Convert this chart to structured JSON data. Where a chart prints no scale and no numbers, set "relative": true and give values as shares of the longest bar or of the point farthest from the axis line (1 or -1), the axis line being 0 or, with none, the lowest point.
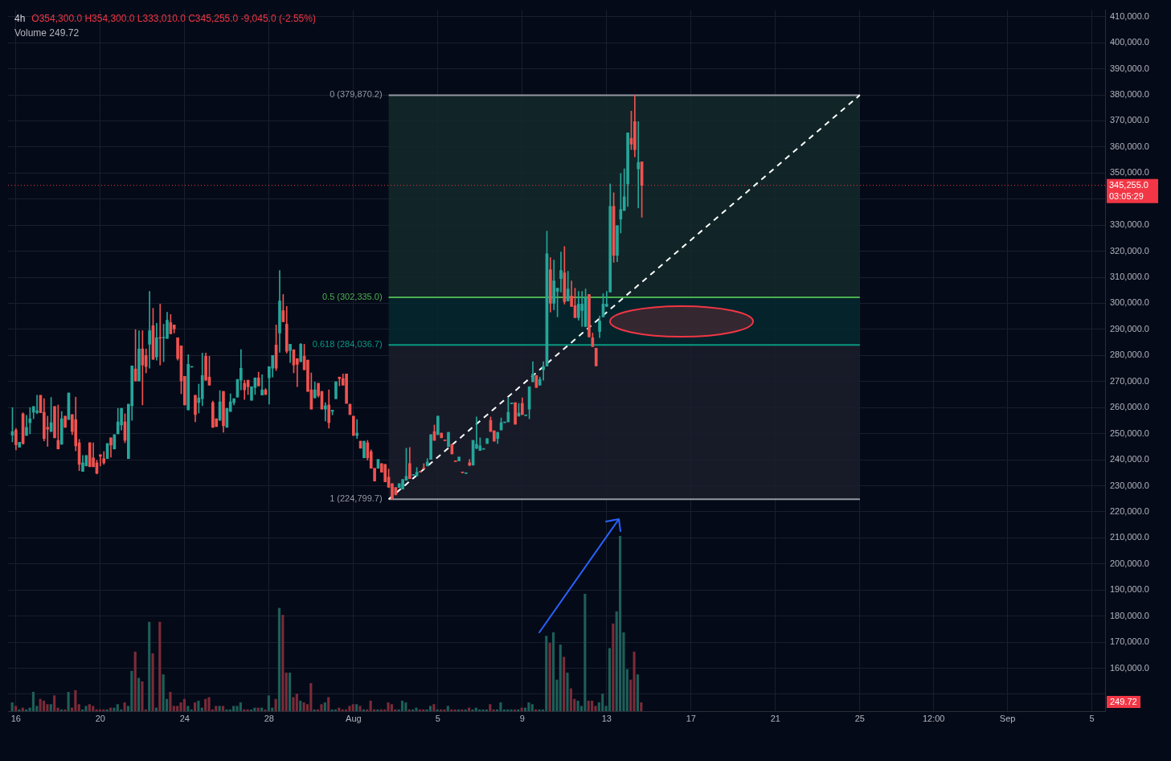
{
  "chart_data": [
    {
      "type": "candlestick",
      "title": "4h",
      "subtitle": "O354,300.0 H354,300.0 L333,010.0 C345,255.0 -9,045.0 (-2.55%)",
      "x": [
        "--07-15T20:00",
        "--07-16T00:00",
        "--07-16T04:00",
        "--07-16T08:00",
        "--07-16T12:00",
        "--07-16T16:00",
        "--07-16T20:00",
        "--07-17T00:00",
        "--07-17T04:00",
        "--07-17T08:00",
        "--07-17T12:00",
        "--07-17T16:00",
        "--07-17T20:00",
        "--07-18T00:00",
        "--07-18T04:00",
        "--07-18T08:00",
        "--07-18T12:00",
        "--07-18T16:00",
        "--07-18T20:00",
        "--07-19T00:00",
        "--07-19T04:00",
        "--07-19T08:00",
        "--07-19T12:00",
        "--07-19T16:00",
        "--07-19T20:00",
        "--07-20T00:00",
        "--07-20T04:00",
        "--07-20T08:00",
        "--07-20T12:00",
        "--07-20T16:00",
        "--07-20T20:00",
        "--07-21T00:00",
        "--07-21T04:00",
        "--07-21T08:00",
        "--07-21T12:00",
        "--07-21T16:00",
        "--07-21T20:00",
        "--07-22T00:00",
        "--07-22T04:00",
        "--07-22T08:00",
        "--07-22T12:00",
        "--07-22T16:00",
        "--07-22T20:00",
        "--07-23T00:00",
        "--07-23T04:00",
        "--07-23T08:00",
        "--07-23T12:00",
        "--07-23T16:00",
        "--07-23T20:00",
        "--07-24T00:00",
        "--07-24T04:00",
        "--07-24T08:00",
        "--07-24T12:00",
        "--07-24T16:00",
        "--07-24T20:00",
        "--07-25T00:00",
        "--07-25T04:00",
        "--07-25T08:00",
        "--07-25T12:00",
        "--07-25T16:00",
        "--07-25T20:00",
        "--07-26T00:00",
        "--07-26T04:00",
        "--07-26T08:00",
        "--07-26T12:00",
        "--07-26T16:00",
        "--07-26T20:00",
        "--07-27T00:00",
        "--07-27T04:00",
        "--07-27T08:00",
        "--07-27T12:00",
        "--07-27T16:00",
        "--07-27T20:00",
        "--07-28T00:00",
        "--07-28T04:00",
        "--07-28T08:00",
        "--07-28T12:00",
        "--07-28T16:00",
        "--07-28T20:00",
        "--07-29T00:00",
        "--07-29T04:00",
        "--07-29T08:00",
        "--07-29T12:00",
        "--07-29T16:00",
        "--07-29T20:00",
        "--07-30T00:00",
        "--07-30T04:00",
        "--07-30T08:00",
        "--07-30T12:00",
        "--07-30T16:00",
        "--07-30T20:00",
        "--07-31T00:00",
        "--07-31T04:00",
        "--07-31T08:00",
        "--07-31T12:00",
        "--07-31T16:00",
        "--07-31T20:00",
        "--08-01T00:00",
        "--08-01T04:00",
        "--08-01T08:00",
        "--08-01T12:00",
        "--08-01T16:00",
        "--08-01T20:00",
        "--08-02T00:00",
        "--08-02T04:00",
        "--08-02T08:00",
        "--08-02T12:00",
        "--08-02T16:00",
        "--08-02T20:00",
        "--08-03T00:00",
        "--08-03T04:00",
        "--08-03T08:00",
        "--08-03T12:00",
        "--08-03T16:00",
        "--08-03T20:00",
        "--08-04T00:00",
        "--08-04T04:00",
        "--08-04T08:00",
        "--08-04T12:00",
        "--08-04T16:00",
        "--08-04T20:00",
        "--08-05T00:00",
        "--08-05T04:00",
        "--08-05T08:00",
        "--08-05T12:00",
        "--08-05T16:00",
        "--08-05T20:00",
        "--08-06T00:00",
        "--08-06T04:00",
        "--08-06T08:00",
        "--08-06T12:00",
        "--08-06T16:00",
        "--08-06T20:00",
        "--08-07T00:00",
        "--08-07T04:00",
        "--08-07T08:00",
        "--08-07T12:00",
        "--08-07T16:00",
        "--08-07T20:00",
        "--08-08T00:00",
        "--08-08T04:00",
        "--08-08T08:00",
        "--08-08T12:00",
        "--08-08T16:00",
        "--08-08T20:00",
        "--08-09T00:00",
        "--08-09T04:00",
        "--08-09T08:00",
        "--08-09T12:00",
        "--08-09T16:00",
        "--08-09T20:00",
        "--08-10T00:00",
        "--08-10T04:00",
        "--08-10T08:00",
        "--08-10T12:00",
        "--08-10T16:00",
        "--08-10T20:00",
        "--08-11T00:00",
        "--08-11T04:00",
        "--08-11T08:00",
        "--08-11T12:00",
        "--08-11T16:00",
        "--08-11T20:00",
        "--08-12T00:00",
        "--08-12T04:00",
        "--08-12T08:00",
        "--08-12T12:00",
        "--08-12T16:00",
        "--08-12T20:00",
        "--08-13T00:00",
        "--08-13T04:00",
        "--08-13T08:00",
        "--08-13T12:00",
        "--08-13T16:00",
        "--08-13T20:00",
        "--08-14T00:00",
        "--08-14T04:00",
        "--08-14T08:00",
        "--08-14T12:00",
        "--08-14T16:00"
      ],
      "ohlc": [
        [
          249400,
          260000,
          246800,
          250800
        ],
        [
          251400,
          252000,
          243700,
          245700
        ],
        [
          244800,
          246700,
          244800,
          246700
        ],
        [
          257600,
          258000,
          245900,
          246200
        ],
        [
          249300,
          257000,
          249300,
          252400
        ],
        [
          254200,
          260000,
          249900,
          255700
        ],
        [
          258200,
          260400,
          255700,
          260400
        ],
        [
          258100,
          264700,
          257600,
          258800
        ],
        [
          264700,
          264700,
          258000,
          258000
        ],
        [
          258200,
          263400,
          247200,
          248100
        ],
        [
          252400,
          256700,
          245100,
          251700
        ],
        [
          250800,
          263900,
          250800,
          254200
        ],
        [
          260400,
          260400,
          248400,
          248400
        ],
        [
          247400,
          261000,
          244100,
          244100
        ],
        [
          245900,
          258500,
          245900,
          255700
        ],
        [
          256700,
          256700,
          252400,
          252400
        ],
        [
          255400,
          265600,
          255400,
          265600
        ],
        [
          257300,
          257300,
          249600,
          250800
        ],
        [
          255400,
          264000,
          243400,
          245300
        ],
        [
          246500,
          247800,
          235800,
          238200
        ],
        [
          235500,
          241600,
          235500,
          238800
        ],
        [
          237600,
          241600,
          237600,
          241600
        ],
        [
          246500,
          246500,
          237300,
          237300
        ],
        [
          240700,
          246500,
          237300,
          237300
        ],
        [
          238800,
          239800,
          234500,
          234800
        ],
        [
          241900,
          241900,
          237600,
          241300
        ],
        [
          240400,
          243100,
          238200,
          238800
        ],
        [
          240400,
          246200,
          240400,
          246200
        ],
        [
          248400,
          248400,
          241000,
          245600
        ],
        [
          244100,
          249600,
          244100,
          249600
        ],
        [
          249900,
          259700,
          249900,
          254500
        ],
        [
          253300,
          259700,
          251400,
          259700
        ],
        [
          254500,
          257600,
          246500,
          247400
        ],
        [
          240400,
          261300,
          240400,
          261300
        ],
        [
          260700,
          276000,
          255100,
          276000
        ],
        [
          274800,
          289900,
          270200,
          270200
        ],
        [
          270200,
          289500,
          270200,
          282500
        ],
        [
          282500,
          289500,
          261000,
          276300
        ],
        [
          280000,
          282500,
          273300,
          275700
        ],
        [
          284300,
          304600,
          275100,
          289500
        ],
        [
          291400,
          298100,
          278500,
          278500
        ],
        [
          279400,
          292300,
          278200,
          286800
        ],
        [
          286800,
          299700,
          276300,
          286600
        ],
        [
          286700,
          292000,
          277600,
          286800
        ],
        [
          286500,
          296600,
          286500,
          293500
        ],
        [
          292600,
          295700,
          288300,
          288300
        ],
        [
          291700,
          291700,
          288600,
          290200
        ],
        [
          286800,
          286800,
          278200,
          278800
        ],
        [
          283700,
          283700,
          265300,
          270200
        ],
        [
          272000,
          272000,
          261000,
          261000
        ],
        [
          259100,
          280300,
          259100,
          276600
        ],
        [
          275500,
          275600,
          275500,
          275600
        ],
        [
          264700,
          264700,
          254500,
          257300
        ],
        [
          261900,
          269000,
          257900,
          263700
        ],
        [
          263400,
          280900,
          260700,
          272300
        ],
        [
          279700,
          280900,
          270500,
          270500
        ],
        [
          271700,
          279700,
          268600,
          268600
        ],
        [
          261900,
          262500,
          252400,
          252400
        ],
        [
          255700,
          255700,
          252700,
          252700
        ],
        [
          255100,
          266500,
          255100,
          262200
        ],
        [
          266200,
          266200,
          250500,
          253000
        ],
        [
          252400,
          259700,
          252400,
          259700
        ],
        [
          258500,
          265300,
          258500,
          262200
        ],
        [
          261900,
          263400,
          261000,
          263400
        ],
        [
          264000,
          270800,
          264000,
          270800
        ],
        [
          270500,
          282200,
          266800,
          275100
        ],
        [
          269300,
          270500,
          263100,
          266800
        ],
        [
          270500,
          270500,
          265000,
          268000
        ],
        [
          262800,
          268000,
          262800,
          268000
        ],
        [
          267700,
          271400,
          265000,
          271400
        ],
        [
          271400,
          273600,
          268300,
          268300
        ],
        [
          264800,
          272600,
          264800,
          266800
        ],
        [
          266800,
          267300,
          265000,
          265000
        ],
        [
          271400,
          275700,
          261300,
          275700
        ],
        [
          275100,
          280000,
          271700,
          280000
        ],
        [
          284000,
          291700,
          274200,
          275100
        ],
        [
          288600,
          312600,
          281200,
          300900
        ],
        [
          297200,
          303400,
          292900,
          292900
        ],
        [
          292000,
          298800,
          280900,
          281600
        ],
        [
          281900,
          284300,
          277300,
          284300
        ],
        [
          282200,
          282200,
          273300,
          276300
        ],
        [
          278800,
          278800,
          268000,
          276600
        ],
        [
          277600,
          284600,
          277600,
          284300
        ],
        [
          279700,
          284300,
          274500,
          274500
        ],
        [
          278200,
          278200,
          266200,
          266200
        ],
        [
          266800,
          273300,
          259400,
          259400
        ],
        [
          263700,
          269800,
          263700,
          266800
        ],
        [
          269300,
          269300,
          264000,
          264600
        ],
        [
          266200,
          266200,
          259400,
          259400
        ],
        [
          259400,
          261900,
          254800,
          260700
        ],
        [
          261000,
          266800,
          252100,
          254200
        ],
        [
          258500,
          259000,
          257200,
          259000
        ],
        [
          263400,
          269900,
          263400,
          269900
        ],
        [
          271700,
          271700,
          268300,
          271100
        ],
        [
          271100,
          272900,
          268600,
          268600
        ],
        [
          272900,
          272900,
          261600,
          261600
        ],
        [
          261300,
          261300,
          257300,
          257300
        ],
        [
          256700,
          256700,
          249300,
          249300
        ],
        [
          249300,
          255400,
          248100,
          250200
        ],
        [
          247100,
          247100,
          244400,
          244400
        ],
        [
          240700,
          247100,
          240700,
          247100
        ],
        [
          246500,
          247400,
          239800,
          240700
        ],
        [
          243100,
          243800,
          236700,
          236700
        ],
        [
          236700,
          236700,
          231800,
          231800
        ],
        [
          236700,
          240100,
          236700,
          240100
        ],
        [
          238500,
          238500,
          235200,
          235200
        ],
        [
          238200,
          238200,
          231500,
          231500
        ],
        [
          233300,
          236400,
          229400,
          229400
        ],
        [
          230800,
          230800,
          224799.7,
          225000
        ],
        [
          229300,
          229300,
          226500,
          226500
        ],
        [
          229300,
          230800,
          229300,
          230800
        ],
        [
          228700,
          232400,
          228700,
          232400
        ],
        [
          232100,
          244400,
          232100,
          233600
        ],
        [
          238500,
          244700,
          232700,
          232700
        ],
        [
          234000,
          234100,
          234000,
          234100
        ],
        [
          233900,
          237000,
          233600,
          235200
        ],
        [
          235500,
          235500,
          235200,
          235200
        ],
        [
          236700,
          238500,
          236500,
          236500
        ],
        [
          237600,
          240400,
          237600,
          239100
        ],
        [
          240100,
          249600,
          240100,
          249600
        ],
        [
          250800,
          253300,
          247400,
          247400
        ],
        [
          249600,
          256700,
          249600,
          256700
        ],
        [
          250200,
          250200,
          248400,
          248400
        ],
        [
          247400,
          247400,
          247300,
          247300
        ],
        [
          245000,
          250500,
          245000,
          250500
        ],
        [
          245900,
          245900,
          242200,
          242200
        ],
        [
          239400,
          239400,
          239300,
          239300
        ],
        [
          239500,
          241000,
          239500,
          241000
        ],
        [
          235100,
          235100,
          235000,
          235000
        ],
        [
          234700,
          234800,
          234700,
          234800
        ],
        [
          238800,
          240100,
          237600,
          237900
        ],
        [
          237900,
          247400,
          237900,
          247400
        ],
        [
          244400,
          256400,
          244100,
          245900
        ],
        [
          243500,
          248400,
          243500,
          245300
        ],
        [
          244000,
          244100,
          244000,
          244100
        ],
        [
          246200,
          248100,
          246200,
          248100
        ],
        [
          255100,
          256400,
          250800,
          250800
        ],
        [
          251100,
          251100,
          247100,
          247100
        ],
        [
          248100,
          250500,
          246200,
          250500
        ],
        [
          251400,
          256000,
          251400,
          254200
        ],
        [
          254200,
          254300,
          254200,
          254300
        ],
        [
          254500,
          263700,
          254500,
          258200
        ],
        [
          261500,
          261600,
          261500,
          261600
        ],
        [
          261900,
          261900,
          253600,
          253600
        ],
        [
          256700,
          261600,
          256700,
          257900
        ],
        [
          261600,
          263700,
          257300,
          257300
        ],
        [
          256900,
          257000,
          256900,
          257000
        ],
        [
          259400,
          268000,
          255700,
          268000
        ],
        [
          269900,
          277600,
          269900,
          272900
        ],
        [
          272300,
          272300,
          267700,
          267700
        ],
        [
          268600,
          271700,
          268600,
          270800
        ],
        [
          274500,
          277600,
          270500,
          275700
        ],
        [
          275900,
          327700,
          275900,
          319000
        ],
        [
          312900,
          317500,
          296600,
          300000
        ],
        [
          300000,
          316600,
          297500,
          308600
        ],
        [
          304600,
          305800,
          294800,
          305800
        ],
        [
          309500,
          319700,
          304300,
          312600
        ],
        [
          311700,
          321800,
          299700,
          300600
        ],
        [
          300900,
          312300,
          300900,
          305500
        ],
        [
          302800,
          308600,
          298800,
          298800
        ],
        [
          299100,
          305800,
          294500,
          294500
        ],
        [
          294500,
          304600,
          293500,
          299700
        ],
        [
          297200,
          304600,
          291100,
          299700
        ],
        [
          291100,
          305500,
          291100,
          302100
        ],
        [
          303400,
          303400,
          287100,
          287100
        ],
        [
          286800,
          288600,
          283400,
          283400
        ],
        [
          282800,
          282800,
          276000,
          276000
        ],
        [
          289200,
          295100,
          286800,
          293200
        ],
        [
          294800,
          303700,
          294800,
          299700
        ],
        [
          298800,
          304600,
          298800,
          299700
        ],
        [
          304300,
          345800,
          304300,
          337200
        ],
        [
          337200,
          342400,
          315700,
          318400
        ],
        [
          318400,
          329800,
          316000,
          329800
        ],
        [
          332300,
          349800,
          327000,
          336000
        ],
        [
          335600,
          351600,
          335600,
          340900
        ],
        [
          345800,
          365400,
          337200,
          365400
        ],
        [
          363300,
          373700,
          359000,
          361100
        ],
        [
          369700,
          379870.2,
          356200,
          359000
        ],
        [
          351600,
          369700,
          336600,
          354100
        ],
        [
          354300,
          354300,
          333010,
          345255
        ]
      ],
      "colors": [
        "#26a69a",
        "#ef5350",
        "#26a69a",
        "#ef5350",
        "#26a69a",
        "#26a69a",
        "#26a69a",
        "#26a69a",
        "#ef5350",
        "#ef5350",
        "#ef5350",
        "#26a69a",
        "#ef5350",
        "#ef5350",
        "#26a69a",
        "#ef5350",
        "#26a69a",
        "#ef5350",
        "#ef5350",
        "#ef5350",
        "#26a69a",
        "#26a69a",
        "#ef5350",
        "#ef5350",
        "#ef5350",
        "#ef5350",
        "#ef5350",
        "#26a69a",
        "#ef5350",
        "#26a69a",
        "#26a69a",
        "#26a69a",
        "#ef5350",
        "#26a69a",
        "#26a69a",
        "#ef5350",
        "#26a69a",
        "#ef5350",
        "#ef5350",
        "#26a69a",
        "#ef5350",
        "#26a69a",
        "#ef5350",
        "#26a69a",
        "#26a69a",
        "#ef5350",
        "#ef5350",
        "#ef5350",
        "#ef5350",
        "#ef5350",
        "#26a69a",
        "#26a69a",
        "#ef5350",
        "#26a69a",
        "#26a69a",
        "#ef5350",
        "#ef5350",
        "#ef5350",
        "#ef5350",
        "#26a69a",
        "#ef5350",
        "#26a69a",
        "#26a69a",
        "#26a69a",
        "#26a69a",
        "#26a69a",
        "#ef5350",
        "#ef5350",
        "#26a69a",
        "#26a69a",
        "#ef5350",
        "#26a69a",
        "#ef5350",
        "#26a69a",
        "#26a69a",
        "#ef5350",
        "#26a69a",
        "#ef5350",
        "#ef5350",
        "#26a69a",
        "#ef5350",
        "#ef5350",
        "#26a69a",
        "#ef5350",
        "#ef5350",
        "#ef5350",
        "#26a69a",
        "#ef5350",
        "#ef5350",
        "#26a69a",
        "#ef5350",
        "#26a69a",
        "#26a69a",
        "#ef5350",
        "#ef5350",
        "#ef5350",
        "#ef5350",
        "#ef5350",
        "#26a69a",
        "#ef5350",
        "#26a69a",
        "#ef5350",
        "#ef5350",
        "#ef5350",
        "#26a69a",
        "#ef5350",
        "#ef5350",
        "#ef5350",
        "#ef5350",
        "#ef5350",
        "#26a69a",
        "#26a69a",
        "#26a69a",
        "#ef5350",
        "#26a69a",
        "#26a69a",
        "#ef5350",
        "#ef5350",
        "#26a69a",
        "#26a69a",
        "#ef5350",
        "#26a69a",
        "#ef5350",
        "#ef5350",
        "#26a69a",
        "#ef5350",
        "#ef5350",
        "#26a69a",
        "#ef5350",
        "#26a69a",
        "#ef5350",
        "#26a69a",
        "#26a69a",
        "#26a69a",
        "#26a69a",
        "#26a69a",
        "#ef5350",
        "#ef5350",
        "#26a69a",
        "#26a69a",
        "#26a69a",
        "#26a69a",
        "#26a69a",
        "#ef5350",
        "#26a69a",
        "#ef5350",
        "#26a69a",
        "#26a69a",
        "#26a69a",
        "#ef5350",
        "#26a69a",
        "#26a69a",
        "#26a69a",
        "#ef5350",
        "#26a69a",
        "#26a69a",
        "#26a69a",
        "#ef5350",
        "#26a69a",
        "#ef5350",
        "#ef5350",
        "#26a69a",
        "#26a69a",
        "#26a69a",
        "#ef5350",
        "#ef5350",
        "#ef5350",
        "#26a69a",
        "#26a69a",
        "#26a69a",
        "#26a69a",
        "#ef5350",
        "#26a69a",
        "#26a69a",
        "#26a69a",
        "#26a69a",
        "#ef5350",
        "#ef5350",
        "#26a69a",
        "#ef5350"
      ],
      "series": [
        {
          "type": "line",
          "x": [
            "--08-02T16:00",
            "--08-25"
          ],
          "values": [
            224800,
            379900
          ],
          "color": "#ffffff",
          "line_style": "dashed",
          "marker": "none"
        }
      ],
      "ref_lines": [
        {
          "axis": "y",
          "value": 379870.2,
          "label": "0 (379,870.2)",
          "color": "#9598a1"
        },
        {
          "axis": "y",
          "value": 302335.0,
          "label": "0.5 (302,335.0)",
          "color": "#4caf50"
        },
        {
          "axis": "y",
          "value": 284036.7,
          "label": "0.618 (284,036.7)",
          "color": "#089981"
        },
        {
          "axis": "y",
          "value": 224799.7,
          "label": "1 (224,799.7)",
          "color": "#9598a1"
        },
        {
          "axis": "y",
          "value": 345255.0,
          "label": "345,255.0 03:05:29",
          "color": "#f23645",
          "line_style": "dotted"
        }
      ],
      "bands": [
        {
          "axis": "y",
          "from": 302335.0,
          "to": 379870.2,
          "color": "#14292a"
        },
        {
          "axis": "y",
          "from": 284036.7,
          "to": 302335.0,
          "color": "#06282f"
        },
        {
          "axis": "y",
          "from": 224799.7,
          "to": 284036.7,
          "color": "#1b1f2b"
        }
      ],
      "xlim": [
        "--07-15T15:00",
        "--09-05T15:00"
      ],
      "xticks": [
        {
          "value": "--07-16",
          "label": "16"
        },
        {
          "value": "--07-20",
          "label": "20"
        },
        {
          "value": "--07-24",
          "label": "24"
        },
        {
          "value": "--07-28",
          "label": "28"
        },
        {
          "value": "--08-01",
          "label": "Aug"
        },
        {
          "value": "--08-05",
          "label": "5"
        },
        {
          "value": "--08-09",
          "label": "9"
        },
        {
          "value": "--08-13",
          "label": "13"
        },
        {
          "value": "--08-17",
          "label": "17"
        },
        {
          "value": "--08-21",
          "label": "21"
        },
        {
          "value": "--08-25",
          "label": "25"
        },
        {
          "value": "--08-28T12:00",
          "label": "12:00"
        },
        {
          "value": "--09-01",
          "label": "Sep"
        },
        {
          "value": "--09-05",
          "label": "5"
        }
      ],
      "ylim": [
        143500,
        412500
      ],
      "yticks": [
        {
          "value": 150000,
          "label": null
        },
        {
          "value": 160000,
          "label": "160,000.0"
        },
        {
          "value": 170000,
          "label": "170,000.0"
        },
        {
          "value": 180000,
          "label": "180,000.0"
        },
        {
          "value": 190000,
          "label": "190,000.0"
        },
        {
          "value": 200000,
          "label": "200,000.0"
        },
        {
          "value": 210000,
          "label": "210,000.0"
        },
        {
          "value": 220000,
          "label": "220,000.0"
        },
        {
          "value": 230000,
          "label": "230,000.0"
        },
        {
          "value": 240000,
          "label": "240,000.0"
        },
        {
          "value": 250000,
          "label": "250,000.0"
        },
        {
          "value": 260000,
          "label": "260,000.0"
        },
        {
          "value": 270000,
          "label": "270,000.0"
        },
        {
          "value": 280000,
          "label": "280,000.0"
        },
        {
          "value": 290000,
          "label": "290,000.0"
        },
        {
          "value": 300000,
          "label": "300,000.0"
        },
        {
          "value": 310000,
          "label": "310,000.0"
        },
        {
          "value": 320000,
          "label": "320,000.0"
        },
        {
          "value": 330000,
          "label": "330,000.0"
        },
        {
          "value": 340000,
          "label": null
        },
        {
          "value": 350000,
          "label": "350,000.0"
        },
        {
          "value": 360000,
          "label": "360,000.0"
        },
        {
          "value": 370000,
          "label": "370,000.0"
        },
        {
          "value": 380000,
          "label": "380,000.0"
        },
        {
          "value": 390000,
          "label": "390,000.0"
        },
        {
          "value": 400000,
          "label": "400,000.0"
        },
        {
          "value": 410000,
          "label": "410,000.0"
        }
      ],
      "grid": true
    },
    {
      "type": "bar",
      "relative": true,
      "categories": [
        null,
        null,
        null,
        null,
        null,
        null,
        null,
        null,
        null,
        null,
        null,
        null,
        null,
        null,
        null,
        null,
        null,
        null,
        null,
        null,
        null,
        null,
        null,
        null,
        null,
        null,
        null,
        null,
        null,
        null,
        null,
        null,
        null,
        null,
        null,
        null,
        null,
        null,
        null,
        null,
        null,
        null,
        null,
        null,
        null,
        null,
        null,
        null,
        null,
        null,
        null,
        null,
        null,
        null,
        null,
        null,
        null,
        null,
        null,
        null,
        null,
        null,
        null,
        null,
        null,
        null,
        null,
        null,
        null,
        null,
        null,
        null,
        null,
        null,
        null,
        null,
        null,
        null,
        null,
        null,
        null,
        null,
        null,
        null,
        null,
        null,
        null,
        null,
        null,
        null,
        null,
        null,
        null,
        null,
        null,
        null,
        null,
        null,
        null,
        null,
        null,
        null,
        null,
        null,
        null,
        null,
        null,
        null,
        null,
        null,
        null,
        null,
        null,
        null,
        null,
        null,
        null,
        null,
        null,
        null,
        null,
        null,
        null,
        null,
        null,
        null,
        null,
        null,
        null,
        null,
        null,
        null,
        null,
        null,
        null,
        null,
        null,
        null,
        null,
        null,
        null,
        null,
        null,
        null,
        null,
        null,
        null,
        null,
        null,
        null,
        null,
        null,
        null,
        null,
        null,
        null,
        null,
        null,
        null,
        null,
        null,
        null,
        null,
        null,
        null,
        null,
        null,
        null,
        null,
        null,
        null,
        null,
        null,
        null,
        null,
        null,
        null,
        null,
        null,
        null
      ],
      "values": [
        0.05,
        0.03,
        0.01,
        0.02,
        0.01,
        0.02,
        0.11,
        0.03,
        0.07,
        0.06,
        0.04,
        0.04,
        0.09,
        0.02,
        0.01,
        0.01,
        0.11,
        0.02,
        0.12,
        0.04,
        0.01,
        0.03,
        0.04,
        0.03,
        0.01,
        0.01,
        0.01,
        0.01,
        0.02,
        0.02,
        0.04,
        0.01,
        0.05,
        0.03,
        0.23,
        0.34,
        0.19,
        0.17,
        0.01,
        0.51,
        0.33,
        0.02,
        0.51,
        0.21,
        0.07,
        0.11,
        0.03,
        0.03,
        0.05,
        0.07,
        0.03,
        0.01,
        0.05,
        0.06,
        0.02,
        0.07,
        0.08,
        0.01,
        0.03,
        0.03,
        0.03,
        0.01,
        0.01,
        0.03,
        0.03,
        0.05,
        0.01,
        0.01,
        0.01,
        0.02,
        0.02,
        0.02,
        0.01,
        0.09,
        0.02,
        0.07,
        0.59,
        0.55,
        0.22,
        0.22,
        0.08,
        0.1,
        0.06,
        0.05,
        0.04,
        0.16,
        0.01,
        0.01,
        0.04,
        0.05,
        0.08,
        0.01,
        0.01,
        0.02,
        0.01,
        0.01,
        0.03,
        0.04,
        0.04,
        0.03,
        0.01,
        0.01,
        0.06,
        0.01,
        0.01,
        0.01,
        0.01,
        0.05,
        0.04,
        0.01,
        0.01,
        0.06,
        0.05,
        0.01,
        0.01,
        0.02,
        0.01,
        0.01,
        0.01,
        0.03,
        0.04,
        0.01,
        0.01,
        0.01,
        0.03,
        0.01,
        0.01,
        0.01,
        0.01,
        0.01,
        0.02,
        0.01,
        0.02,
        0.01,
        0.01,
        0.01,
        0.04,
        0.01,
        0.01,
        0.05,
        0.01,
        0.01,
        0.01,
        0.01,
        0.01,
        0.02,
        0.02,
        0.05,
        0.04,
        0.01,
        0.01,
        0.01,
        0.43,
        0.39,
        0.45,
        0.18,
        0.38,
        0.31,
        0.22,
        0.13,
        0.07,
        0.06,
        0.03,
        0.67,
        0.06,
        0.06,
        0.03,
        0.05,
        0.1,
        0.03,
        0.36,
        0.5,
        0.57,
        1,
        0.45,
        0.24,
        0.18,
        0.34,
        0.21,
        0.05
      ],
      "colors": [
        "#1e5f58",
        "#7b2b38",
        "#1e5f58",
        "#7b2b38",
        "#1e5f58",
        "#1e5f58",
        "#1e5f58",
        "#1e5f58",
        "#7b2b38",
        "#7b2b38",
        "#7b2b38",
        "#1e5f58",
        "#7b2b38",
        "#7b2b38",
        "#1e5f58",
        "#7b2b38",
        "#1e5f58",
        "#7b2b38",
        "#7b2b38",
        "#7b2b38",
        "#1e5f58",
        "#1e5f58",
        "#7b2b38",
        "#7b2b38",
        "#7b2b38",
        "#7b2b38",
        "#7b2b38",
        "#1e5f58",
        "#7b2b38",
        "#1e5f58",
        "#1e5f58",
        "#1e5f58",
        "#7b2b38",
        "#1e5f58",
        "#1e5f58",
        "#7b2b38",
        "#1e5f58",
        "#7b2b38",
        "#7b2b38",
        "#1e5f58",
        "#7b2b38",
        "#1e5f58",
        "#7b2b38",
        "#1e5f58",
        "#1e5f58",
        "#7b2b38",
        "#7b2b38",
        "#7b2b38",
        "#7b2b38",
        "#7b2b38",
        "#1e5f58",
        "#1e5f58",
        "#7b2b38",
        "#1e5f58",
        "#1e5f58",
        "#7b2b38",
        "#7b2b38",
        "#7b2b38",
        "#7b2b38",
        "#1e5f58",
        "#7b2b38",
        "#1e5f58",
        "#1e5f58",
        "#1e5f58",
        "#1e5f58",
        "#1e5f58",
        "#7b2b38",
        "#7b2b38",
        "#1e5f58",
        "#1e5f58",
        "#7b2b38",
        "#1e5f58",
        "#7b2b38",
        "#1e5f58",
        "#1e5f58",
        "#7b2b38",
        "#1e5f58",
        "#7b2b38",
        "#7b2b38",
        "#1e5f58",
        "#7b2b38",
        "#7b2b38",
        "#1e5f58",
        "#7b2b38",
        "#7b2b38",
        "#7b2b38",
        "#1e5f58",
        "#7b2b38",
        "#7b2b38",
        "#1e5f58",
        "#7b2b38",
        "#1e5f58",
        "#1e5f58",
        "#7b2b38",
        "#7b2b38",
        "#7b2b38",
        "#7b2b38",
        "#7b2b38",
        "#1e5f58",
        "#7b2b38",
        "#1e5f58",
        "#7b2b38",
        "#7b2b38",
        "#7b2b38",
        "#1e5f58",
        "#7b2b38",
        "#7b2b38",
        "#7b2b38",
        "#7b2b38",
        "#7b2b38",
        "#1e5f58",
        "#1e5f58",
        "#1e5f58",
        "#7b2b38",
        "#1e5f58",
        "#1e5f58",
        "#7b2b38",
        "#7b2b38",
        "#1e5f58",
        "#1e5f58",
        "#7b2b38",
        "#1e5f58",
        "#7b2b38",
        "#7b2b38",
        "#1e5f58",
        "#7b2b38",
        "#7b2b38",
        "#1e5f58",
        "#7b2b38",
        "#1e5f58",
        "#7b2b38",
        "#1e5f58",
        "#1e5f58",
        "#1e5f58",
        "#1e5f58",
        "#1e5f58",
        "#7b2b38",
        "#7b2b38",
        "#1e5f58",
        "#1e5f58",
        "#1e5f58",
        "#1e5f58",
        "#1e5f58",
        "#7b2b38",
        "#1e5f58",
        "#7b2b38",
        "#1e5f58",
        "#1e5f58",
        "#1e5f58",
        "#7b2b38",
        "#1e5f58",
        "#1e5f58",
        "#1e5f58",
        "#7b2b38",
        "#1e5f58",
        "#1e5f58",
        "#1e5f58",
        "#7b2b38",
        "#1e5f58",
        "#7b2b38",
        "#7b2b38",
        "#1e5f58",
        "#1e5f58",
        "#1e5f58",
        "#7b2b38",
        "#7b2b38",
        "#7b2b38",
        "#1e5f58",
        "#1e5f58",
        "#1e5f58",
        "#1e5f58",
        "#7b2b38",
        "#1e5f58",
        "#1e5f58",
        "#1e5f58",
        "#1e5f58",
        "#7b2b38",
        "#7b2b38",
        "#1e5f58",
        "#7b2b38"
      ],
      "annotations": [
        "Volume 249.72",
        "249.72"
      ]
    }
  ]
}
